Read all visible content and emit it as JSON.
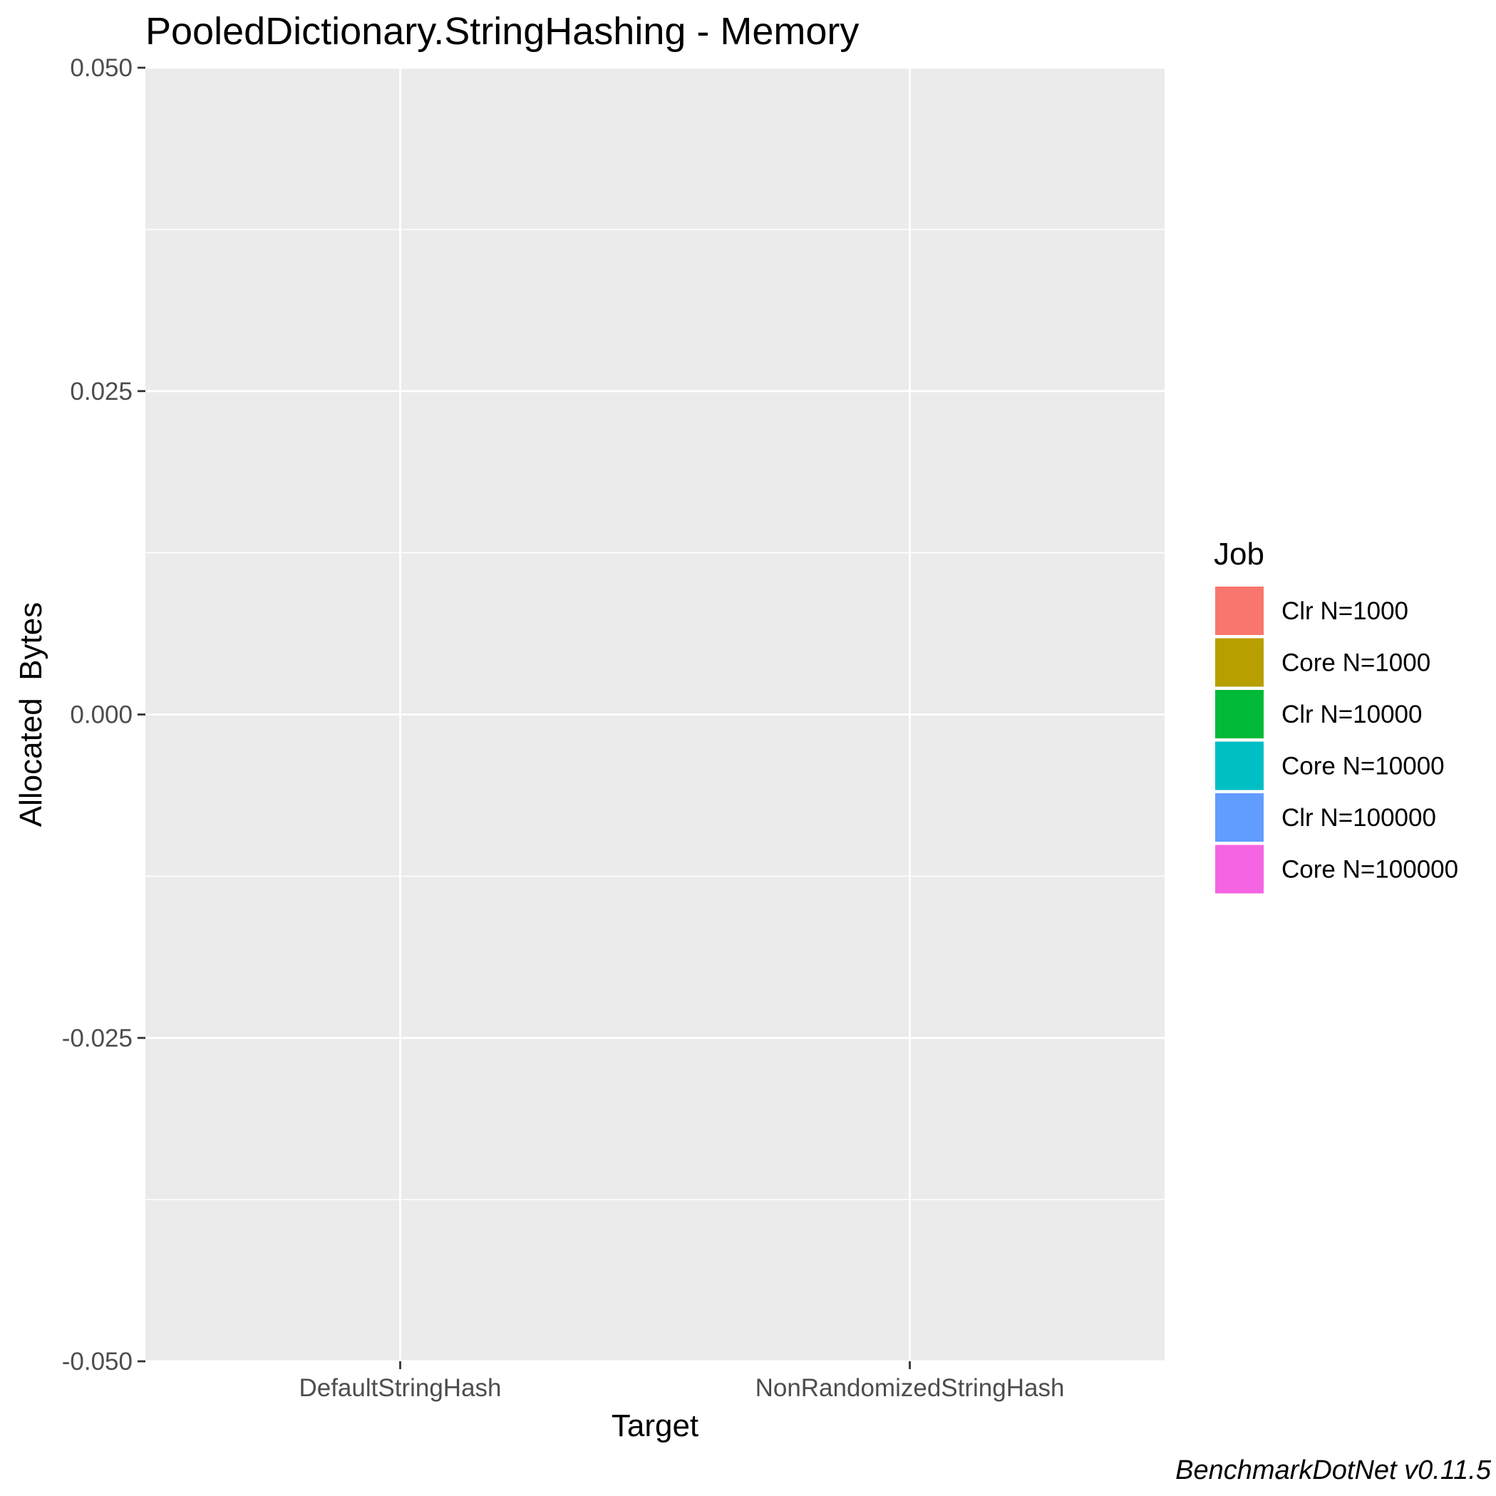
{
  "chart_data": {
    "type": "bar",
    "title": "PooledDictionary.StringHashing - Memory",
    "xlabel": "Target",
    "ylabel": "Allocated  Bytes",
    "categories": [
      "DefaultStringHash",
      "NonRandomizedStringHash"
    ],
    "ylim": [
      -0.05,
      0.05
    ],
    "yticks": [
      0.05,
      0.025,
      0.0,
      -0.025,
      -0.05
    ],
    "ytick_labels": [
      "0.050",
      "0.025",
      "0.000",
      "-0.025",
      "-0.050"
    ],
    "grid": true,
    "legend": {
      "title": "Job",
      "position": "right",
      "entries": [
        {
          "label": "Clr N=1000",
          "color": "#F8766D"
        },
        {
          "label": "Core N=1000",
          "color": "#B79F00"
        },
        {
          "label": "Clr N=10000",
          "color": "#00BA38"
        },
        {
          "label": "Core N=10000",
          "color": "#00BFC4"
        },
        {
          "label": "Clr N=100000",
          "color": "#619CFF"
        },
        {
          "label": "Core N=100000",
          "color": "#F564E3"
        }
      ]
    },
    "series": [
      {
        "name": "Clr N=1000",
        "values": [
          0,
          0
        ]
      },
      {
        "name": "Core N=1000",
        "values": [
          0,
          0
        ]
      },
      {
        "name": "Clr N=10000",
        "values": [
          0,
          0
        ]
      },
      {
        "name": "Core N=10000",
        "values": [
          0,
          0
        ]
      },
      {
        "name": "Clr N=100000",
        "values": [
          0,
          0
        ]
      },
      {
        "name": "Core N=100000",
        "values": [
          0,
          0
        ]
      }
    ],
    "caption": "BenchmarkDotNet v0.11.5",
    "panel_background": "#EBEBEB",
    "grid_color": "#FFFFFF"
  }
}
